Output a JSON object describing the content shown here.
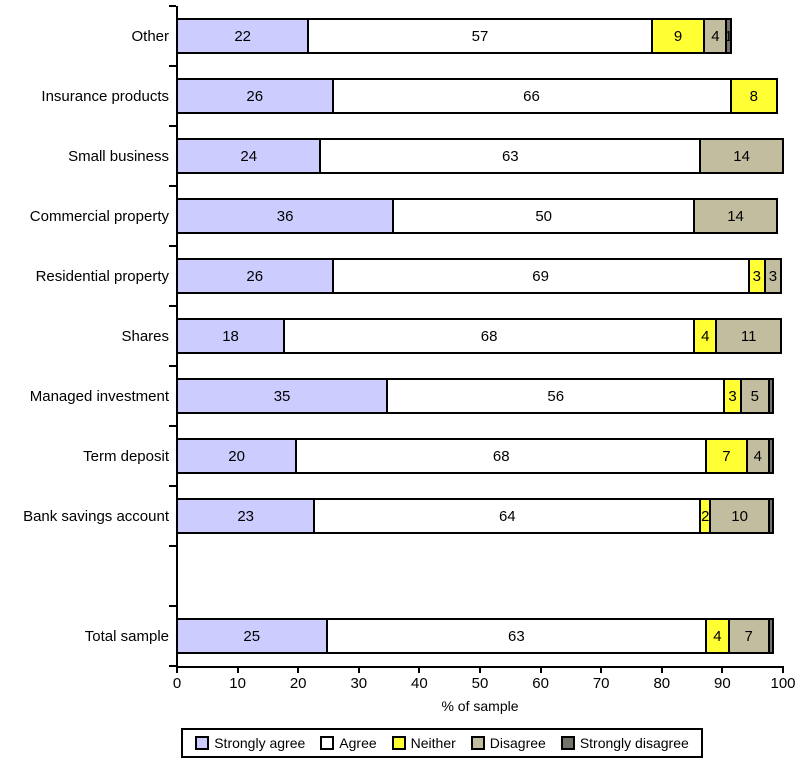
{
  "chart_data": {
    "type": "stacked_bar_horizontal",
    "title": "",
    "xlabel": "% of sample",
    "ylabel": "",
    "xlim": [
      0,
      100
    ],
    "xticks": [
      0,
      10,
      20,
      30,
      40,
      50,
      60,
      70,
      80,
      90,
      100
    ],
    "grid": false,
    "legend_position": "bottom",
    "legend": [
      {
        "name": "Strongly agree",
        "color": "#CCCCFF"
      },
      {
        "name": "Agree",
        "color": "#FFFFFF"
      },
      {
        "name": "Neither",
        "color": "#FFFF33"
      },
      {
        "name": "Disagree",
        "color": "#C1BD9E"
      },
      {
        "name": "Strongly disagree",
        "color": "#73736B"
      }
    ],
    "categories": [
      "Other",
      "Insurance products",
      "Small business",
      "Commercial property",
      "Residential property",
      "Shares",
      "Managed investment",
      "Term deposit",
      "Bank savings account",
      "",
      "Total sample"
    ],
    "series": [
      {
        "name": "Strongly agree",
        "values": [
          22,
          26,
          24,
          36,
          26,
          18,
          35,
          20,
          23,
          null,
          25
        ]
      },
      {
        "name": "Agree",
        "values": [
          57,
          66,
          63,
          50,
          69,
          68,
          56,
          68,
          64,
          null,
          63
        ]
      },
      {
        "name": "Neither",
        "values": [
          9,
          8,
          0,
          0,
          3,
          4,
          3,
          7,
          2,
          null,
          4
        ]
      },
      {
        "name": "Disagree",
        "values": [
          4,
          0,
          14,
          14,
          3,
          11,
          5,
          4,
          10,
          null,
          7
        ]
      },
      {
        "name": "Strongly disagree",
        "values": [
          1,
          0,
          0,
          0,
          0,
          0,
          1,
          1,
          1,
          null,
          1
        ]
      }
    ],
    "rows": [
      {
        "category": "Other",
        "segments": [
          {
            "series": "Strongly agree",
            "value": 22,
            "label": "22"
          },
          {
            "series": "Agree",
            "value": 57,
            "label": "57"
          },
          {
            "series": "Neither",
            "value": 9,
            "label": "9"
          },
          {
            "series": "Disagree",
            "value": 4,
            "label": "4"
          },
          {
            "series": "Strongly disagree",
            "value": 1,
            "label": "1"
          }
        ]
      },
      {
        "category": "Insurance products",
        "segments": [
          {
            "series": "Strongly agree",
            "value": 26,
            "label": "26"
          },
          {
            "series": "Agree",
            "value": 66,
            "label": "66"
          },
          {
            "series": "Neither",
            "value": 8,
            "label": "8"
          }
        ]
      },
      {
        "category": "Small business",
        "segments": [
          {
            "series": "Strongly agree",
            "value": 24,
            "label": "24"
          },
          {
            "series": "Agree",
            "value": 63,
            "label": "63"
          },
          {
            "series": "Disagree",
            "value": 14,
            "label": "14"
          }
        ]
      },
      {
        "category": "Commercial property",
        "segments": [
          {
            "series": "Strongly agree",
            "value": 36,
            "label": "36"
          },
          {
            "series": "Agree",
            "value": 50,
            "label": "50"
          },
          {
            "series": "Disagree",
            "value": 14,
            "label": "14"
          }
        ]
      },
      {
        "category": "Residential property",
        "segments": [
          {
            "series": "Strongly agree",
            "value": 26,
            "label": "26"
          },
          {
            "series": "Agree",
            "value": 69,
            "label": "69"
          },
          {
            "series": "Neither",
            "value": 3,
            "label": "3"
          },
          {
            "series": "Disagree",
            "value": 3,
            "label": "3"
          }
        ]
      },
      {
        "category": "Shares",
        "segments": [
          {
            "series": "Strongly agree",
            "value": 18,
            "label": "18"
          },
          {
            "series": "Agree",
            "value": 68,
            "label": "68"
          },
          {
            "series": "Neither",
            "value": 4,
            "label": "4"
          },
          {
            "series": "Disagree",
            "value": 11,
            "label": "11"
          }
        ]
      },
      {
        "category": "Managed investment",
        "segments": [
          {
            "series": "Strongly agree",
            "value": 35,
            "label": "35"
          },
          {
            "series": "Agree",
            "value": 56,
            "label": "56"
          },
          {
            "series": "Neither",
            "value": 3,
            "label": "3"
          },
          {
            "series": "Disagree",
            "value": 5,
            "label": "5"
          },
          {
            "series": "Strongly disagree",
            "value": 1,
            "label": ""
          }
        ]
      },
      {
        "category": "Term deposit",
        "segments": [
          {
            "series": "Strongly agree",
            "value": 20,
            "label": "20"
          },
          {
            "series": "Agree",
            "value": 68,
            "label": "68"
          },
          {
            "series": "Neither",
            "value": 7,
            "label": "7"
          },
          {
            "series": "Disagree",
            "value": 4,
            "label": "4"
          },
          {
            "series": "Strongly disagree",
            "value": 1,
            "label": ""
          }
        ]
      },
      {
        "category": "Bank savings account",
        "segments": [
          {
            "series": "Strongly agree",
            "value": 23,
            "label": "23"
          },
          {
            "series": "Agree",
            "value": 64,
            "label": "64"
          },
          {
            "series": "Neither",
            "value": 2,
            "label": "2"
          },
          {
            "series": "Disagree",
            "value": 10,
            "label": "10"
          },
          {
            "series": "Strongly disagree",
            "value": 1,
            "label": ""
          }
        ]
      },
      {
        "category": "",
        "segments": []
      },
      {
        "category": "Total sample",
        "segments": [
          {
            "series": "Strongly agree",
            "value": 25,
            "label": "25"
          },
          {
            "series": "Agree",
            "value": 63,
            "label": "63"
          },
          {
            "series": "Neither",
            "value": 4,
            "label": "4"
          },
          {
            "series": "Disagree",
            "value": 7,
            "label": "7"
          },
          {
            "series": "Strongly disagree",
            "value": 1,
            "label": ""
          }
        ]
      }
    ]
  }
}
